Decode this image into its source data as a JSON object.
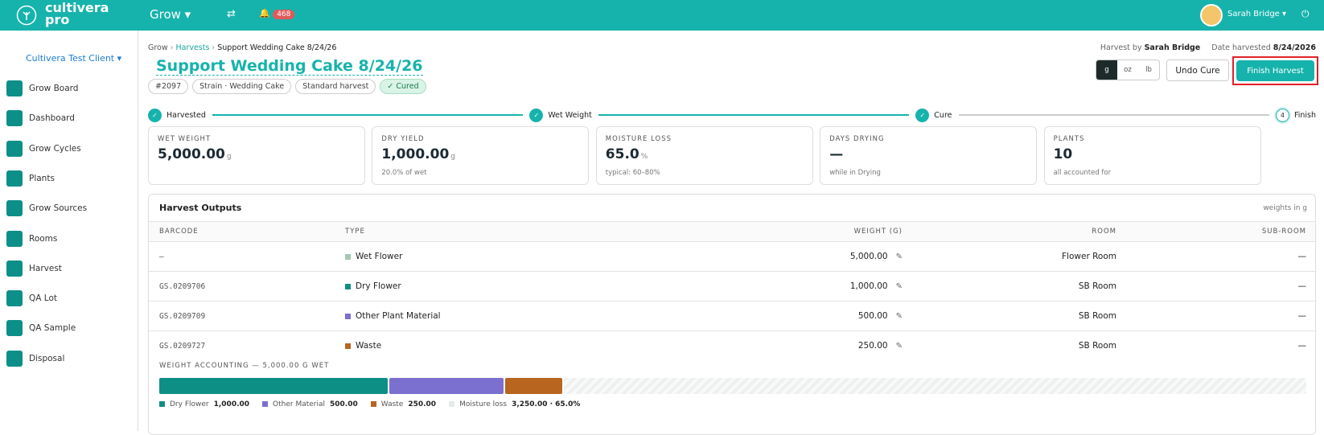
{
  "topbar": {
    "brand_line1": "cultivera",
    "brand_line2": "pro",
    "menu": "Grow",
    "notifications": "468",
    "user": "Sarah Bridge"
  },
  "sidebar": {
    "client": "Cultivera Test Client",
    "items": [
      "Grow Board",
      "Dashboard",
      "Grow Cycles",
      "Plants",
      "Grow Sources",
      "Rooms",
      "Harvest",
      "QA Lot",
      "QA Sample",
      "Disposal"
    ]
  },
  "breadcrumb": [
    "Grow",
    "Harvests",
    "Support Wedding Cake 8/24/26"
  ],
  "meta": {
    "harvest_by_label": "Harvest by",
    "harvest_by": "Sarah Bridge",
    "date_label": "Date harvested",
    "date": "8/24/2026"
  },
  "title": "Support Wedding Cake 8/24/26",
  "tags": [
    "#2097",
    "Strain · Wedding Cake",
    "Standard harvest",
    "✓ Cured"
  ],
  "units": [
    "g",
    "oz",
    "lb"
  ],
  "buttons": {
    "undo": "Undo Cure",
    "finish": "Finish Harvest"
  },
  "steps": [
    {
      "label": "Harvested"
    },
    {
      "label": "Wet Weight"
    },
    {
      "label": "Cure"
    },
    {
      "number": "4",
      "label": "Finish"
    }
  ],
  "stats": [
    {
      "label": "WET WEIGHT",
      "value": "5,000.00",
      "unit": "g"
    },
    {
      "label": "DRY YIELD",
      "value": "1,000.00",
      "unit": "g",
      "note": "20.0% of wet"
    },
    {
      "label": "MOISTURE LOSS",
      "value": "65.0",
      "unit": "%",
      "note": "typical: 60–80%"
    },
    {
      "label": "DAYS DRYING",
      "value": "—",
      "note": "while in Drying"
    },
    {
      "label": "PLANTS",
      "value": "10",
      "note": "all accounted for"
    }
  ],
  "outputs": {
    "title": "Harvest Outputs",
    "note": "weights in g",
    "columns": [
      "BARCODE",
      "TYPE",
      "WEIGHT (G)",
      "ROOM",
      "SUB-ROOM"
    ],
    "rows": [
      [
        "–",
        "Wet Flower",
        "5,000.00",
        "Flower Room",
        "—"
      ],
      [
        "GS.0209706",
        "Dry Flower",
        "1,000.00",
        "SB Room",
        "—"
      ],
      [
        "GS.0209709",
        "Other Plant Material",
        "500.00",
        "SB Room",
        "—"
      ],
      [
        "GS.0209727",
        "Waste",
        "250.00",
        "SB Room",
        "—"
      ]
    ]
  },
  "accounting": {
    "title": "WEIGHT ACCOUNTING — 5,000.00 G WET",
    "legend": [
      {
        "label": "Dry Flower",
        "value": "1,000.00"
      },
      {
        "label": "Other Material",
        "value": "500.00"
      },
      {
        "label": "Waste",
        "value": "250.00"
      },
      {
        "label": "Moisture loss",
        "value": "3,250.00 · 65.0%"
      }
    ]
  }
}
